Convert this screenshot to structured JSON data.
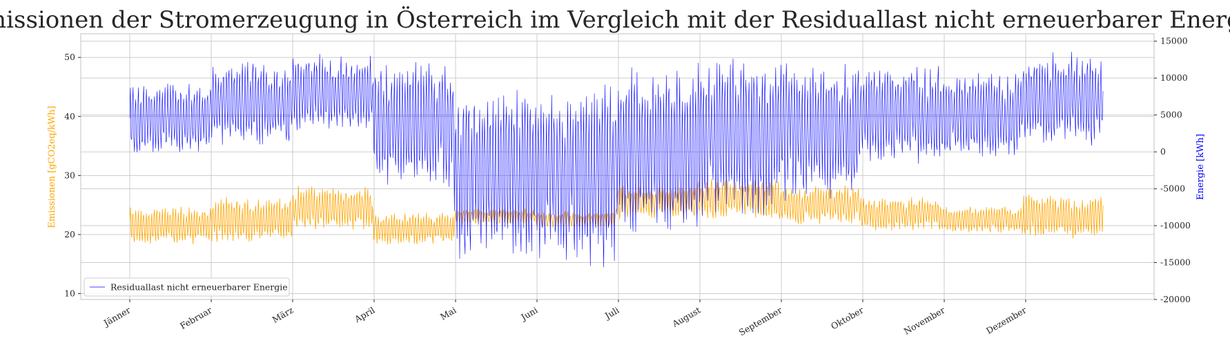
{
  "chart_data": {
    "type": "line",
    "title": "Emissionen der Stromerzeugung in Österreich im Vergleich mit der Residuallast nicht erneuerbarer Energie",
    "xlabel": "",
    "x_tick_labels": [
      "Jänner",
      "Februar",
      "März",
      "April",
      "Mai",
      "Juni",
      "Juli",
      "August",
      "September",
      "Oktober",
      "November",
      "Dezember"
    ],
    "left_axis": {
      "label": "Emissionen [gCO2eq/kWh]",
      "ylim": [
        9,
        54
      ],
      "ticks": [
        10,
        20,
        30,
        40,
        50
      ],
      "color": "#ffa500"
    },
    "right_axis": {
      "label": "Energie [kWh]",
      "ylim": [
        -20000,
        16000
      ],
      "ticks": [
        -20000,
        -15000,
        -10000,
        -5000,
        0,
        5000,
        10000,
        15000
      ],
      "color": "#0000ff"
    },
    "legend": {
      "placement": "lower-left",
      "entries": [
        "Residuallast nicht erneuerbarer Energie"
      ]
    },
    "grid": true,
    "series": [
      {
        "name": "Residuallast nicht erneuerbarer Energie",
        "axis": "right",
        "color": "#0000ff",
        "monthly_profile": [
          {
            "month": "Jänner",
            "mean": 4500,
            "amplitude": 5000
          },
          {
            "month": "Februar",
            "mean": 6500,
            "amplitude": 6000
          },
          {
            "month": "März",
            "mean": 8000,
            "amplitude": 5500
          },
          {
            "month": "April",
            "mean": 4000,
            "amplitude": 9000
          },
          {
            "month": "Mai",
            "mean": -3000,
            "amplitude": 12000
          },
          {
            "month": "Juni",
            "mean": -3000,
            "amplitude": 13000
          },
          {
            "month": "Juli",
            "mean": 0,
            "amplitude": 12000
          },
          {
            "month": "August",
            "mean": 2000,
            "amplitude": 11000
          },
          {
            "month": "September",
            "mean": 3000,
            "amplitude": 10000
          },
          {
            "month": "Oktober",
            "mean": 5000,
            "amplitude": 7000
          },
          {
            "month": "November",
            "mean": 5000,
            "amplitude": 6000
          },
          {
            "month": "Dezember",
            "mean": 7000,
            "amplitude": 7000
          }
        ],
        "range": [
          -16000,
          15200
        ]
      },
      {
        "axis": "left",
        "color": "#ffa500",
        "monthly_profile": [
          {
            "month": "Jänner",
            "mean": 21.5,
            "amplitude": 3.5
          },
          {
            "month": "Februar",
            "mean": 22.5,
            "amplitude": 4
          },
          {
            "month": "März",
            "mean": 24.5,
            "amplitude": 4
          },
          {
            "month": "April",
            "mean": 21,
            "amplitude": 3
          },
          {
            "month": "Mai",
            "mean": 23,
            "amplitude": 1.5
          },
          {
            "month": "Juni",
            "mean": 22.5,
            "amplitude": 1.5
          },
          {
            "month": "Juli",
            "mean": 25.5,
            "amplitude": 3
          },
          {
            "month": "August",
            "mean": 26,
            "amplitude": 3.5
          },
          {
            "month": "September",
            "mean": 25,
            "amplitude": 3.5
          },
          {
            "month": "Oktober",
            "mean": 23.5,
            "amplitude": 3
          },
          {
            "month": "November",
            "mean": 22.5,
            "amplitude": 2.5
          },
          {
            "month": "Dezember",
            "mean": 23,
            "amplitude": 4
          }
        ],
        "range": [
          11,
          32
        ]
      }
    ]
  }
}
